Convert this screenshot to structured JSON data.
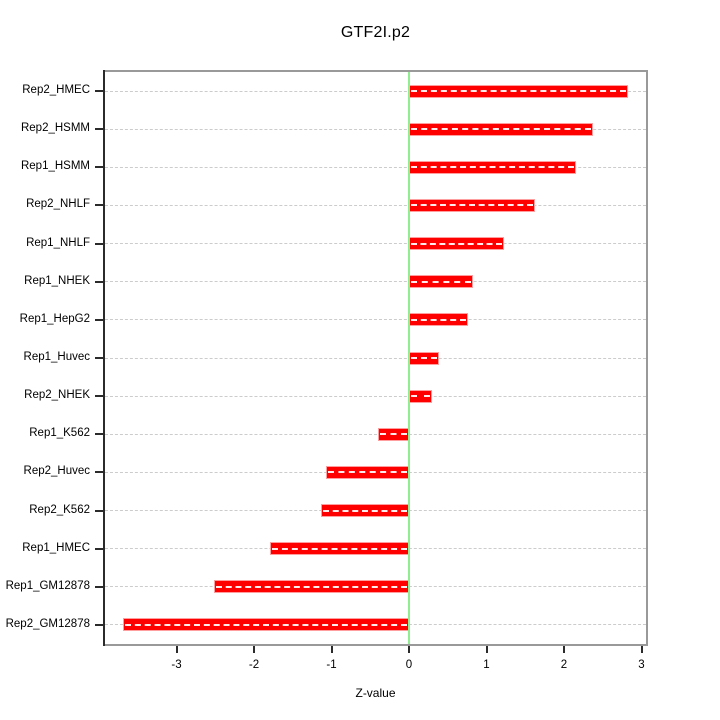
{
  "title": "GTF2I.p2",
  "chart_data": {
    "type": "bar",
    "orientation": "horizontal",
    "title": "GTF2I.p2",
    "xlabel": "Z-value",
    "ylabel": "",
    "categories": [
      "Rep2_HMEC",
      "Rep2_HSMM",
      "Rep1_HSMM",
      "Rep2_NHLF",
      "Rep1_NHLF",
      "Rep1_NHEK",
      "Rep1_HepG2",
      "Rep1_Huvec",
      "Rep2_NHEK",
      "Rep1_K562",
      "Rep2_Huvec",
      "Rep2_K562",
      "Rep1_HMEC",
      "Rep1_GM12878",
      "Rep2_GM12878"
    ],
    "values": [
      2.82,
      2.37,
      2.16,
      1.63,
      1.22,
      0.82,
      0.76,
      0.39,
      0.3,
      -0.4,
      -1.07,
      -1.14,
      -1.79,
      -2.51,
      -3.69
    ],
    "xticks": [
      -3,
      -2,
      -1,
      0,
      1,
      2,
      3
    ],
    "xtick_labels": [
      "-3",
      "-2",
      "-1",
      "0",
      "1",
      "2",
      "3"
    ],
    "xlim": [
      -3.95,
      3.08
    ],
    "zero_reference_line": 0,
    "grid": {
      "horizontal_dashed_per_category": true,
      "legend_position": "none"
    },
    "colors": {
      "bar_fill": "#ff0000",
      "bar_border": "#ff9e9e",
      "zero_line": "#90ee90",
      "gridline": "#cccccc",
      "frame": "#999999",
      "axis": "#2b2b2b",
      "text": "#000000",
      "background": "#ffffff"
    }
  }
}
